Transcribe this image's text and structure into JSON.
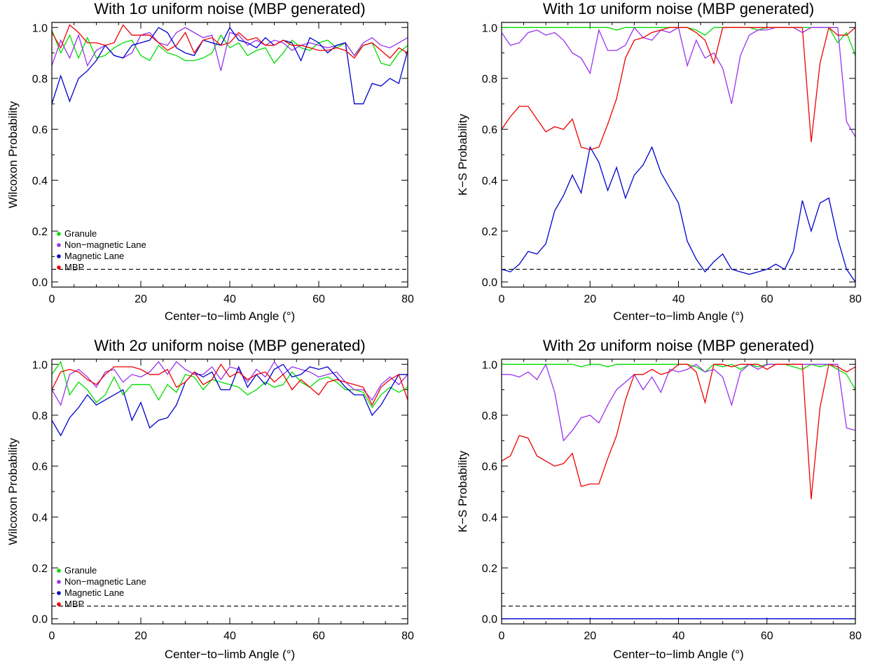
{
  "chart_data": [
    {
      "type": "line",
      "title": "With 1σ uniform noise (MBP generated)",
      "xlabel": "Center−to−limb Angle (°)",
      "ylabel": "Wilcoxon Probability",
      "xlim": [
        0,
        80
      ],
      "ylim": [
        -0.02,
        1.02
      ],
      "xticks": [
        0,
        20,
        40,
        60,
        80
      ],
      "yticks": [
        0.0,
        0.2,
        0.4,
        0.6,
        0.8,
        1.0
      ],
      "xtick_labels": [
        "0",
        "20",
        "40",
        "60",
        "80"
      ],
      "ytick_labels": [
        "0.0",
        "0.2",
        "0.4",
        "0.6",
        "0.8",
        "1.0"
      ],
      "legend": {
        "position": "bottom-left",
        "show": true
      },
      "reference_line": {
        "y": 0.05,
        "style": "dashed",
        "color": "#000000"
      },
      "x": [
        0,
        2,
        4,
        6,
        8,
        10,
        12,
        14,
        16,
        18,
        20,
        22,
        24,
        26,
        28,
        30,
        32,
        34,
        36,
        38,
        40,
        42,
        44,
        46,
        48,
        50,
        52,
        54,
        56,
        58,
        60,
        62,
        64,
        66,
        68,
        70,
        72,
        74,
        76,
        78,
        80
      ],
      "series": [
        {
          "name": "Granule",
          "color": "#00dd00",
          "values": [
            0.99,
            0.9,
            0.97,
            0.88,
            0.96,
            0.88,
            0.89,
            0.92,
            0.94,
            0.95,
            0.89,
            0.87,
            0.93,
            0.9,
            0.89,
            0.87,
            0.87,
            0.88,
            0.9,
            0.97,
            0.92,
            0.94,
            0.89,
            0.91,
            0.92,
            0.86,
            0.9,
            0.95,
            0.92,
            0.91,
            0.94,
            0.95,
            0.92,
            0.94,
            0.89,
            0.93,
            0.94,
            0.86,
            0.85,
            0.9,
            0.93
          ]
        },
        {
          "name": "Non−magnetic Lane",
          "color": "#9933ee",
          "values": [
            0.85,
            0.95,
            0.88,
            0.97,
            0.85,
            0.91,
            0.93,
            0.89,
            0.88,
            0.9,
            0.97,
            0.98,
            0.94,
            0.93,
            0.98,
            1.0,
            0.98,
            0.96,
            0.97,
            0.83,
            0.98,
            0.97,
            0.93,
            0.95,
            0.93,
            0.95,
            0.94,
            0.91,
            0.93,
            0.94,
            0.93,
            0.92,
            0.93,
            0.94,
            0.89,
            0.94,
            0.96,
            0.93,
            0.92,
            0.94,
            0.96
          ]
        },
        {
          "name": "Magnetic Lane",
          "color": "#0000cc",
          "values": [
            0.7,
            0.81,
            0.71,
            0.8,
            0.83,
            0.87,
            0.93,
            0.89,
            0.88,
            0.93,
            0.94,
            0.95,
            1.0,
            0.98,
            0.92,
            0.9,
            0.89,
            0.95,
            0.94,
            0.93,
            1.0,
            0.95,
            0.94,
            0.92,
            0.96,
            0.93,
            0.95,
            0.94,
            0.87,
            0.96,
            0.94,
            0.9,
            0.93,
            0.94,
            0.7,
            0.7,
            0.78,
            0.77,
            0.8,
            0.78,
            0.91
          ]
        },
        {
          "name": "MBP",
          "color": "#ee0000",
          "values": [
            0.98,
            0.92,
            1.01,
            0.98,
            0.94,
            0.94,
            0.93,
            0.94,
            1.01,
            0.97,
            0.97,
            0.97,
            0.94,
            0.91,
            0.93,
            0.98,
            0.9,
            0.95,
            0.96,
            0.93,
            0.94,
            0.98,
            0.95,
            0.96,
            0.93,
            0.93,
            0.95,
            0.93,
            0.93,
            0.92,
            0.91,
            0.91,
            0.92,
            0.91,
            0.88,
            0.93,
            0.94,
            0.91,
            0.88,
            0.92,
            0.9
          ]
        }
      ]
    },
    {
      "type": "line",
      "title": "With 1σ uniform noise (MBP generated)",
      "xlabel": "Center−to−limb Angle (°)",
      "ylabel": "K−S Probability",
      "xlim": [
        0,
        80
      ],
      "ylim": [
        -0.02,
        1.02
      ],
      "xticks": [
        0,
        20,
        40,
        60,
        80
      ],
      "yticks": [
        0.0,
        0.2,
        0.4,
        0.6,
        0.8,
        1.0
      ],
      "xtick_labels": [
        "0",
        "20",
        "40",
        "60",
        "80"
      ],
      "ytick_labels": [
        "0.0",
        "0.2",
        "0.4",
        "0.6",
        "0.8",
        "1.0"
      ],
      "legend": {
        "show": false
      },
      "reference_line": {
        "y": 0.05,
        "style": "dashed",
        "color": "#000000"
      },
      "x": [
        0,
        2,
        4,
        6,
        8,
        10,
        12,
        14,
        16,
        18,
        20,
        22,
        24,
        26,
        28,
        30,
        32,
        34,
        36,
        38,
        40,
        42,
        44,
        46,
        48,
        50,
        52,
        54,
        56,
        58,
        60,
        62,
        64,
        66,
        68,
        70,
        72,
        74,
        76,
        78,
        80
      ],
      "series": [
        {
          "name": "Granule",
          "color": "#00dd00",
          "values": [
            1.0,
            1.0,
            1.0,
            1.0,
            1.0,
            1.0,
            1.0,
            1.0,
            1.0,
            1.0,
            1.0,
            1.0,
            1.0,
            0.99,
            1.0,
            1.0,
            1.0,
            1.0,
            1.0,
            1.0,
            1.0,
            1.0,
            0.99,
            0.97,
            1.0,
            1.0,
            1.0,
            1.0,
            1.0,
            0.99,
            1.0,
            1.0,
            1.0,
            1.0,
            1.0,
            1.0,
            1.0,
            1.0,
            0.94,
            0.98,
            0.89
          ]
        },
        {
          "name": "Non−magnetic Lane",
          "color": "#9933ee",
          "values": [
            0.98,
            0.93,
            0.94,
            0.98,
            0.99,
            0.97,
            0.98,
            0.95,
            0.9,
            0.88,
            0.82,
            0.99,
            0.91,
            0.91,
            0.93,
            1.0,
            0.96,
            0.95,
            0.99,
            0.98,
            1.0,
            0.85,
            0.95,
            0.88,
            0.9,
            0.84,
            0.7,
            0.89,
            0.97,
            0.99,
            0.99,
            1.0,
            1.0,
            1.0,
            0.98,
            1.0,
            1.0,
            1.0,
            1.0,
            0.63,
            0.57
          ]
        },
        {
          "name": "Magnetic Lane",
          "color": "#0000cc",
          "values": [
            0.05,
            0.04,
            0.07,
            0.12,
            0.11,
            0.15,
            0.28,
            0.34,
            0.42,
            0.35,
            0.53,
            0.47,
            0.36,
            0.45,
            0.33,
            0.42,
            0.46,
            0.53,
            0.43,
            0.37,
            0.31,
            0.16,
            0.09,
            0.04,
            0.08,
            0.11,
            0.05,
            0.04,
            0.03,
            0.04,
            0.05,
            0.07,
            0.05,
            0.12,
            0.32,
            0.2,
            0.31,
            0.33,
            0.17,
            0.05,
            0.0
          ]
        },
        {
          "name": "MBP",
          "color": "#ee0000",
          "values": [
            0.6,
            0.65,
            0.69,
            0.69,
            0.64,
            0.59,
            0.61,
            0.6,
            0.64,
            0.53,
            0.52,
            0.53,
            0.62,
            0.72,
            0.88,
            0.95,
            0.96,
            0.98,
            0.99,
            1.0,
            1.0,
            1.0,
            0.98,
            0.95,
            0.86,
            1.0,
            1.0,
            1.0,
            1.0,
            1.0,
            1.0,
            1.0,
            1.0,
            1.0,
            1.0,
            0.55,
            0.86,
            1.0,
            0.97,
            0.97,
            1.0
          ]
        }
      ]
    },
    {
      "type": "line",
      "title": "With 2σ uniform noise (MBP generated)",
      "xlabel": "Center−to−limb Angle (°)",
      "ylabel": "Wilcoxon Probability",
      "xlim": [
        0,
        80
      ],
      "ylim": [
        -0.02,
        1.02
      ],
      "xticks": [
        0,
        20,
        40,
        60,
        80
      ],
      "yticks": [
        0.0,
        0.2,
        0.4,
        0.6,
        0.8,
        1.0
      ],
      "xtick_labels": [
        "0",
        "20",
        "40",
        "60",
        "80"
      ],
      "ytick_labels": [
        "0.0",
        "0.2",
        "0.4",
        "0.6",
        "0.8",
        "1.0"
      ],
      "legend": {
        "position": "bottom-left",
        "show": true
      },
      "reference_line": {
        "y": 0.05,
        "style": "dashed",
        "color": "#000000"
      },
      "x": [
        0,
        2,
        4,
        6,
        8,
        10,
        12,
        14,
        16,
        18,
        20,
        22,
        24,
        26,
        28,
        30,
        32,
        34,
        36,
        38,
        40,
        42,
        44,
        46,
        48,
        50,
        52,
        54,
        56,
        58,
        60,
        62,
        64,
        66,
        68,
        70,
        72,
        74,
        76,
        78,
        80
      ],
      "series": [
        {
          "name": "Granule",
          "color": "#00dd00",
          "values": [
            0.96,
            1.01,
            0.88,
            0.93,
            0.9,
            0.85,
            0.88,
            0.95,
            0.88,
            0.92,
            0.92,
            0.92,
            0.86,
            0.92,
            0.89,
            0.96,
            0.95,
            0.9,
            0.94,
            0.93,
            0.92,
            0.91,
            0.88,
            0.9,
            0.93,
            0.91,
            0.92,
            0.97,
            0.93,
            0.91,
            0.94,
            0.95,
            0.93,
            0.9,
            0.9,
            0.89,
            0.83,
            0.88,
            0.91,
            0.89,
            0.91
          ]
        },
        {
          "name": "Non−magnetic Lane",
          "color": "#9933ee",
          "values": [
            0.9,
            0.84,
            0.96,
            0.98,
            0.95,
            0.91,
            0.97,
            0.98,
            0.93,
            0.96,
            0.95,
            0.97,
            1.01,
            0.96,
            1.01,
            0.98,
            0.96,
            0.96,
            0.99,
            0.94,
            0.99,
            0.98,
            0.93,
            0.98,
            0.95,
            1.01,
            0.96,
            0.99,
            0.98,
            0.97,
            0.95,
            0.96,
            0.97,
            0.93,
            0.9,
            0.9,
            0.86,
            0.92,
            0.95,
            0.92,
            0.96
          ]
        },
        {
          "name": "Magnetic Lane",
          "color": "#0000cc",
          "values": [
            0.78,
            0.72,
            0.79,
            0.83,
            0.88,
            0.84,
            0.86,
            0.88,
            0.9,
            0.78,
            0.85,
            0.75,
            0.78,
            0.79,
            0.84,
            0.93,
            0.97,
            0.95,
            0.97,
            0.9,
            0.9,
            0.99,
            0.91,
            0.96,
            0.92,
            0.98,
            1.0,
            0.95,
            0.96,
            0.99,
            0.98,
            0.99,
            0.95,
            0.91,
            0.88,
            0.88,
            0.8,
            0.84,
            0.9,
            0.96,
            0.96
          ]
        },
        {
          "name": "MBP",
          "color": "#ee0000",
          "values": [
            0.9,
            0.97,
            0.98,
            0.97,
            0.94,
            0.92,
            0.96,
            0.99,
            0.99,
            0.99,
            0.98,
            0.96,
            0.96,
            0.98,
            0.91,
            0.93,
            0.97,
            0.92,
            0.94,
            1.0,
            0.95,
            0.97,
            0.94,
            0.96,
            0.97,
            0.93,
            0.96,
            0.9,
            0.94,
            0.91,
            0.88,
            0.93,
            0.94,
            0.93,
            0.92,
            0.91,
            0.84,
            0.91,
            0.94,
            0.96,
            0.86
          ]
        }
      ]
    },
    {
      "type": "line",
      "title": "With 2σ uniform noise (MBP generated)",
      "xlabel": "Center−to−limb Angle (°)",
      "ylabel": "K−S Probability",
      "xlim": [
        0,
        80
      ],
      "ylim": [
        -0.02,
        1.02
      ],
      "xticks": [
        0,
        20,
        40,
        60,
        80
      ],
      "yticks": [
        0.0,
        0.2,
        0.4,
        0.6,
        0.8,
        1.0
      ],
      "xtick_labels": [
        "0",
        "20",
        "40",
        "60",
        "80"
      ],
      "ytick_labels": [
        "0.0",
        "0.2",
        "0.4",
        "0.6",
        "0.8",
        "1.0"
      ],
      "legend": {
        "show": false
      },
      "reference_line": {
        "y": 0.05,
        "style": "dashed",
        "color": "#000000"
      },
      "x": [
        0,
        2,
        4,
        6,
        8,
        10,
        12,
        14,
        16,
        18,
        20,
        22,
        24,
        26,
        28,
        30,
        32,
        34,
        36,
        38,
        40,
        42,
        44,
        46,
        48,
        50,
        52,
        54,
        56,
        58,
        60,
        62,
        64,
        66,
        68,
        70,
        72,
        74,
        76,
        78,
        80
      ],
      "series": [
        {
          "name": "Granule",
          "color": "#00dd00",
          "values": [
            1.0,
            1.0,
            1.0,
            1.0,
            1.0,
            1.0,
            1.0,
            1.0,
            1.0,
            0.99,
            1.0,
            1.0,
            0.99,
            1.0,
            1.0,
            1.0,
            1.0,
            1.0,
            1.0,
            1.0,
            1.0,
            1.0,
            0.99,
            0.97,
            1.0,
            0.99,
            1.0,
            0.98,
            1.0,
            0.99,
            1.0,
            1.0,
            1.0,
            0.99,
            0.98,
            1.0,
            0.99,
            1.0,
            0.98,
            0.96,
            0.9
          ]
        },
        {
          "name": "Non−magnetic Lane",
          "color": "#9933ee",
          "values": [
            0.96,
            0.96,
            0.95,
            0.97,
            0.94,
            1.0,
            0.89,
            0.7,
            0.74,
            0.79,
            0.8,
            0.77,
            0.84,
            0.9,
            0.93,
            0.96,
            0.9,
            0.95,
            0.89,
            0.98,
            0.97,
            0.98,
            1.0,
            0.97,
            0.98,
            0.95,
            0.84,
            0.97,
            1.0,
            0.98,
            1.0,
            1.0,
            1.0,
            1.0,
            1.0,
            1.0,
            1.0,
            1.0,
            1.0,
            0.75,
            0.74
          ]
        },
        {
          "name": "Magnetic Lane",
          "color": "#0000cc",
          "values": [
            0.0,
            0.0,
            0.0,
            0.0,
            0.0,
            0.0,
            0.0,
            0.0,
            0.0,
            0.0,
            0.0,
            0.0,
            0.0,
            0.0,
            0.0,
            0.0,
            0.0,
            0.0,
            0.0,
            0.0,
            0.0,
            0.0,
            0.0,
            0.0,
            0.0,
            0.0,
            0.0,
            0.0,
            0.0,
            0.0,
            0.0,
            0.0,
            0.0,
            0.0,
            0.0,
            0.0,
            0.0,
            0.0,
            0.0,
            0.0,
            0.0
          ]
        },
        {
          "name": "MBP",
          "color": "#ee0000",
          "values": [
            0.62,
            0.64,
            0.72,
            0.71,
            0.64,
            0.62,
            0.6,
            0.61,
            0.65,
            0.52,
            0.53,
            0.53,
            0.63,
            0.72,
            0.86,
            0.96,
            0.96,
            0.98,
            0.96,
            0.97,
            1.0,
            1.0,
            0.97,
            0.85,
            1.0,
            1.0,
            0.99,
            1.0,
            1.0,
            1.0,
            0.98,
            1.0,
            1.0,
            1.0,
            1.0,
            0.47,
            0.83,
            1.0,
            0.99,
            0.97,
            0.99
          ]
        }
      ]
    }
  ]
}
